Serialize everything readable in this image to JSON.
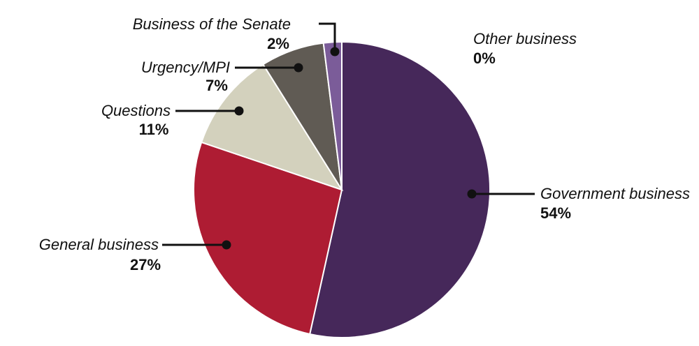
{
  "chart_data": {
    "type": "pie",
    "title": "",
    "slices": [
      {
        "label": "Government business",
        "value": 54,
        "value_label": "54%",
        "color": "#46285a"
      },
      {
        "label": "General business",
        "value": 27,
        "value_label": "27%",
        "color": "#ae1c33"
      },
      {
        "label": "Questions",
        "value": 11,
        "value_label": "11%",
        "color": "#d3d1bd"
      },
      {
        "label": "Urgency/MPI",
        "value": 7,
        "value_label": "7%",
        "color": "#605b54"
      },
      {
        "label": "Business of the Senate",
        "value": 2,
        "value_label": "2%",
        "color": "#7b5c99"
      },
      {
        "label": "Other business",
        "value": 0,
        "value_label": "0%",
        "color": "#9a86b5"
      }
    ]
  }
}
